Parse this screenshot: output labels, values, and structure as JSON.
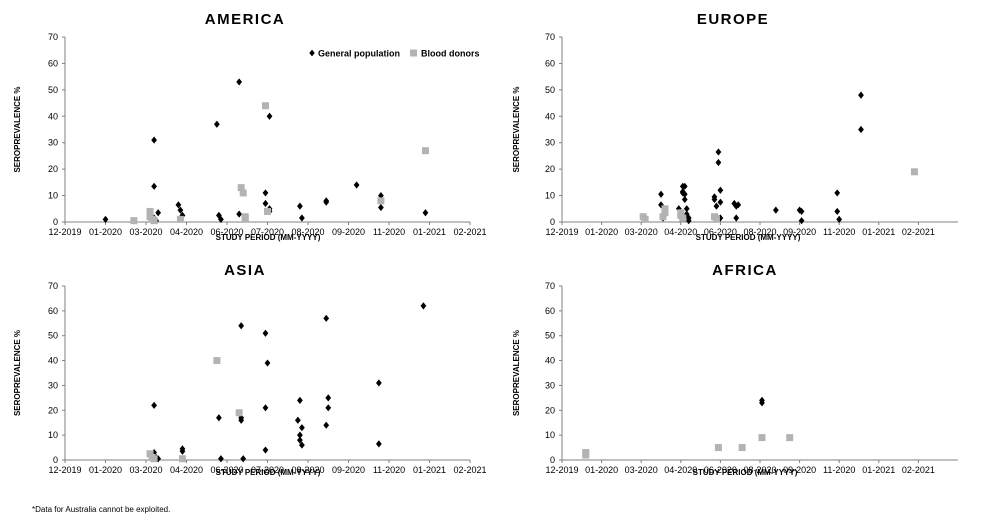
{
  "legend": {
    "general_population": "General population",
    "blood_donors": "Blood donors"
  },
  "colors": {
    "general_population": "#000000",
    "blood_donors": "#b3b3b3",
    "axis": "#808080"
  },
  "footnote": "*Data for Australia cannot be exploited.",
  "chart_data": [
    {
      "type": "scatter",
      "title": "AMERICA",
      "xlabel": "STUDY PERIOD (MM-YYYY)",
      "ylabel": "SEROPREVALENCE %",
      "ylim": [
        0,
        70
      ],
      "yticks": [
        "0",
        "10",
        "20",
        "30",
        "40",
        "50",
        "60",
        "70"
      ],
      "xticks": [
        "12-2019",
        "01-2020",
        "03-2020",
        "04-2020",
        "06-2020",
        "07-2020",
        "08-2020",
        "09-2020",
        "11-2020",
        "01-2021",
        "02-2021"
      ],
      "legend_position": "top-right",
      "series": [
        {
          "name": "General population",
          "marker": "diamond",
          "points": [
            [
              1.0,
              1
            ],
            [
              2.2,
              31
            ],
            [
              2.2,
              13.5
            ],
            [
              2.2,
              1.5
            ],
            [
              2.25,
              0.5
            ],
            [
              2.3,
              3.5
            ],
            [
              2.8,
              6.5
            ],
            [
              2.85,
              4.5
            ],
            [
              2.9,
              2.5
            ],
            [
              3.75,
              37
            ],
            [
              3.8,
              2.5
            ],
            [
              3.85,
              1
            ],
            [
              4.3,
              53
            ],
            [
              4.3,
              3
            ],
            [
              4.95,
              11
            ],
            [
              4.95,
              7
            ],
            [
              5.05,
              40
            ],
            [
              5.05,
              5
            ],
            [
              5.05,
              4
            ],
            [
              5.8,
              6
            ],
            [
              5.85,
              1.5
            ],
            [
              6.45,
              8
            ],
            [
              6.45,
              7.5
            ],
            [
              7.2,
              14
            ],
            [
              7.8,
              10
            ],
            [
              7.8,
              5.5
            ],
            [
              8.9,
              3.5
            ]
          ]
        },
        {
          "name": "Blood donors",
          "marker": "square",
          "points": [
            [
              1.7,
              0.5
            ],
            [
              2.1,
              4
            ],
            [
              2.1,
              2
            ],
            [
              2.15,
              1
            ],
            [
              2.2,
              0.5
            ],
            [
              2.85,
              1
            ],
            [
              4.35,
              13
            ],
            [
              4.4,
              11
            ],
            [
              4.45,
              2
            ],
            [
              4.45,
              1
            ],
            [
              4.95,
              44
            ],
            [
              5.0,
              4
            ],
            [
              7.8,
              8
            ],
            [
              8.9,
              27
            ]
          ]
        }
      ]
    },
    {
      "type": "scatter",
      "title": "EUROPE",
      "xlabel": "STUDY PERIOD (MM-YYYY)",
      "ylabel": "SEROPREVALENCE %",
      "ylim": [
        0,
        70
      ],
      "yticks": [
        "0",
        "10",
        "20",
        "30",
        "40",
        "50",
        "60",
        "70"
      ],
      "xticks": [
        "12-2019",
        "01-2020",
        "03-2020",
        "04-2020",
        "06-2020",
        "08-2020",
        "09-2020",
        "11-2020",
        "01-2021",
        "02-2021"
      ],
      "legend_position": "none",
      "series": [
        {
          "name": "General population",
          "marker": "diamond",
          "points": [
            [
              2.1,
              1.5
            ],
            [
              2.5,
              10.5
            ],
            [
              2.5,
              6.5
            ],
            [
              2.55,
              1.5
            ],
            [
              2.95,
              5
            ],
            [
              3.05,
              13.5
            ],
            [
              3.05,
              11.5
            ],
            [
              3.05,
              11
            ],
            [
              3.1,
              13.5
            ],
            [
              3.1,
              10.5
            ],
            [
              3.1,
              8.5
            ],
            [
              3.15,
              5
            ],
            [
              3.15,
              3
            ],
            [
              3.2,
              1.5
            ],
            [
              3.2,
              0.5
            ],
            [
              3.85,
              9.5
            ],
            [
              3.85,
              8.5
            ],
            [
              3.9,
              6
            ],
            [
              3.9,
              2
            ],
            [
              3.95,
              26.5
            ],
            [
              3.95,
              22.5
            ],
            [
              4.0,
              12
            ],
            [
              4.0,
              7.5
            ],
            [
              4.0,
              1.5
            ],
            [
              4.35,
              7
            ],
            [
              4.4,
              6
            ],
            [
              4.45,
              6.5
            ],
            [
              4.4,
              1.5
            ],
            [
              5.4,
              4.5
            ],
            [
              6.0,
              4.5
            ],
            [
              6.05,
              4
            ],
            [
              6.05,
              0.5
            ],
            [
              6.95,
              11
            ],
            [
              6.95,
              4
            ],
            [
              7.0,
              1
            ],
            [
              7.55,
              48
            ],
            [
              7.55,
              35
            ]
          ]
        },
        {
          "name": "Blood donors",
          "marker": "square",
          "points": [
            [
              2.05,
              2
            ],
            [
              2.1,
              1
            ],
            [
              2.6,
              5
            ],
            [
              2.6,
              3.5
            ],
            [
              2.55,
              2
            ],
            [
              3.0,
              3.5
            ],
            [
              3.0,
              2.5
            ],
            [
              3.05,
              1.5
            ],
            [
              3.85,
              2
            ],
            [
              3.9,
              1
            ],
            [
              8.9,
              19
            ]
          ]
        }
      ]
    },
    {
      "type": "scatter",
      "title": "ASIA",
      "xlabel": "STUDY PERIOD (MM-YYYY)",
      "ylabel": "SEROPREVALENCE %",
      "ylim": [
        0,
        70
      ],
      "yticks": [
        "0",
        "10",
        "20",
        "30",
        "40",
        "50",
        "60",
        "70"
      ],
      "xticks": [
        "12-2019",
        "01-2020",
        "03-2020",
        "04-2020",
        "06-2020",
        "07-2020",
        "08-2020",
        "09-2020",
        "11-2020",
        "01-2021",
        "02-2021"
      ],
      "legend_position": "none",
      "series": [
        {
          "name": "General population",
          "marker": "diamond",
          "points": [
            [
              2.2,
              22
            ],
            [
              2.2,
              3
            ],
            [
              2.25,
              1
            ],
            [
              2.3,
              0.5
            ],
            [
              2.9,
              4.5
            ],
            [
              2.9,
              3.5
            ],
            [
              3.8,
              17
            ],
            [
              3.85,
              0.5
            ],
            [
              4.35,
              54
            ],
            [
              4.35,
              17
            ],
            [
              4.35,
              16
            ],
            [
              4.4,
              0.5
            ],
            [
              4.95,
              51
            ],
            [
              5.0,
              39
            ],
            [
              4.95,
              21
            ],
            [
              4.95,
              4
            ],
            [
              5.75,
              16
            ],
            [
              5.8,
              24
            ],
            [
              5.8,
              10
            ],
            [
              5.8,
              8
            ],
            [
              5.85,
              6
            ],
            [
              5.85,
              13
            ],
            [
              6.45,
              57
            ],
            [
              6.5,
              25
            ],
            [
              6.5,
              21
            ],
            [
              6.45,
              14
            ],
            [
              7.75,
              31
            ],
            [
              7.75,
              6.5
            ],
            [
              8.85,
              62
            ]
          ]
        },
        {
          "name": "Blood donors",
          "marker": "square",
          "points": [
            [
              2.1,
              2.5
            ],
            [
              2.15,
              1
            ],
            [
              2.2,
              0.5
            ],
            [
              2.9,
              0.5
            ],
            [
              3.75,
              40
            ],
            [
              4.3,
              19
            ]
          ]
        }
      ]
    },
    {
      "type": "scatter",
      "title": "AFRICA",
      "xlabel": "STUDY PERIOD (MM-YYYY)",
      "ylabel": "SEROPREVALENCE %",
      "ylim": [
        0,
        70
      ],
      "yticks": [
        "0",
        "10",
        "20",
        "30",
        "40",
        "50",
        "60",
        "70"
      ],
      "xticks": [
        "12-2019",
        "01-2020",
        "03-2020",
        "04-2020",
        "06-2020",
        "08-2020",
        "09-2020",
        "11-2020",
        "01-2021",
        "02-2021"
      ],
      "legend_position": "none",
      "series": [
        {
          "name": "General population",
          "marker": "diamond",
          "points": [
            [
              5.05,
              24
            ],
            [
              5.05,
              23
            ]
          ]
        },
        {
          "name": "Blood donors",
          "marker": "square",
          "points": [
            [
              0.6,
              3
            ],
            [
              0.6,
              2
            ],
            [
              3.95,
              5
            ],
            [
              4.55,
              5
            ],
            [
              5.05,
              9
            ],
            [
              5.75,
              9
            ]
          ]
        }
      ]
    }
  ]
}
